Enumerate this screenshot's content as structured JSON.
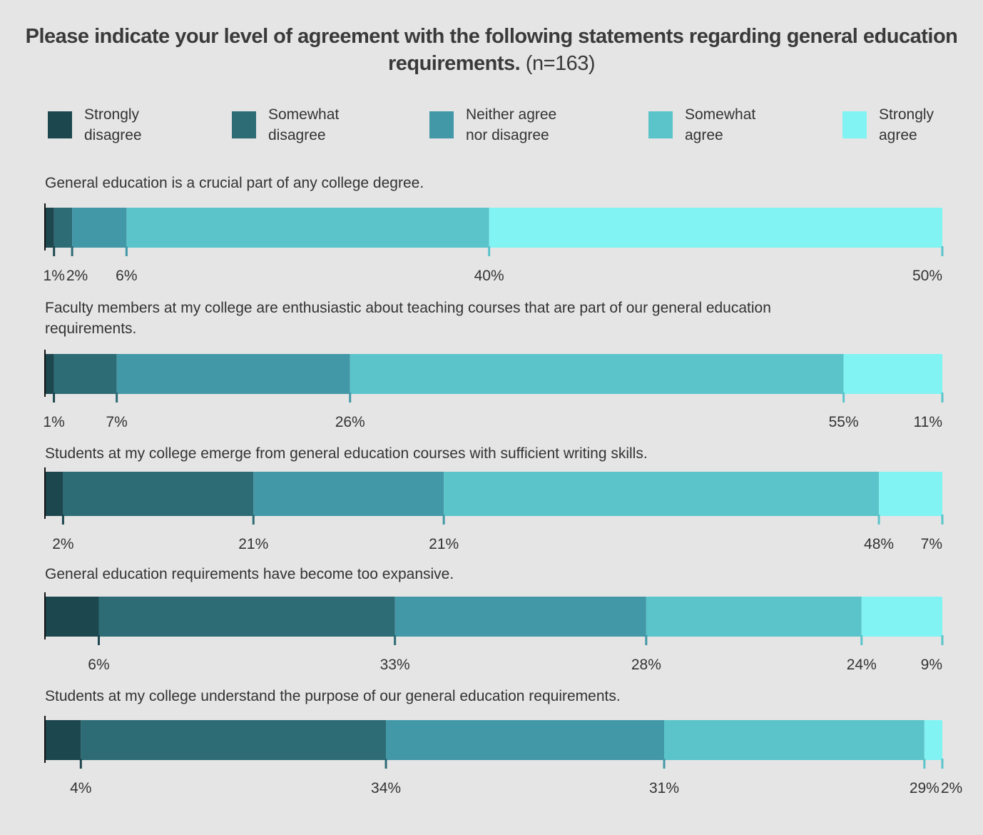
{
  "chart_data": {
    "type": "bar",
    "stacked": true,
    "orientation": "horizontal",
    "title": "Please indicate your level of agreement with the following statements regarding general education requirements.",
    "title_note": "(n=163)",
    "legend_position": "top",
    "series": [
      {
        "name": "Strongly disagree",
        "color": "#1d474f"
      },
      {
        "name": "Somewhat disagree",
        "color": "#2d6b75"
      },
      {
        "name": "Neither agree nor disagree",
        "color": "#4398a8"
      },
      {
        "name": "Somewhat agree",
        "color": "#5bc4ca"
      },
      {
        "name": "Strongly agree",
        "color": "#82f3f3"
      }
    ],
    "categories": [
      "General education is a crucial part of any college degree.",
      "Faculty members at my college are enthusiastic about teaching courses that are part of our general education requirements.",
      "Students at my college emerge from general education courses with sufficient writing skills.",
      "General education requirements have become too expansive.",
      "Students at my college understand the purpose of our general education requirements."
    ],
    "values": [
      [
        1,
        2,
        6,
        40,
        50
      ],
      [
        1,
        7,
        26,
        55,
        11
      ],
      [
        2,
        21,
        21,
        48,
        7
      ],
      [
        6,
        33,
        28,
        24,
        9
      ],
      [
        4,
        34,
        31,
        29,
        2
      ]
    ],
    "unit": "%"
  }
}
